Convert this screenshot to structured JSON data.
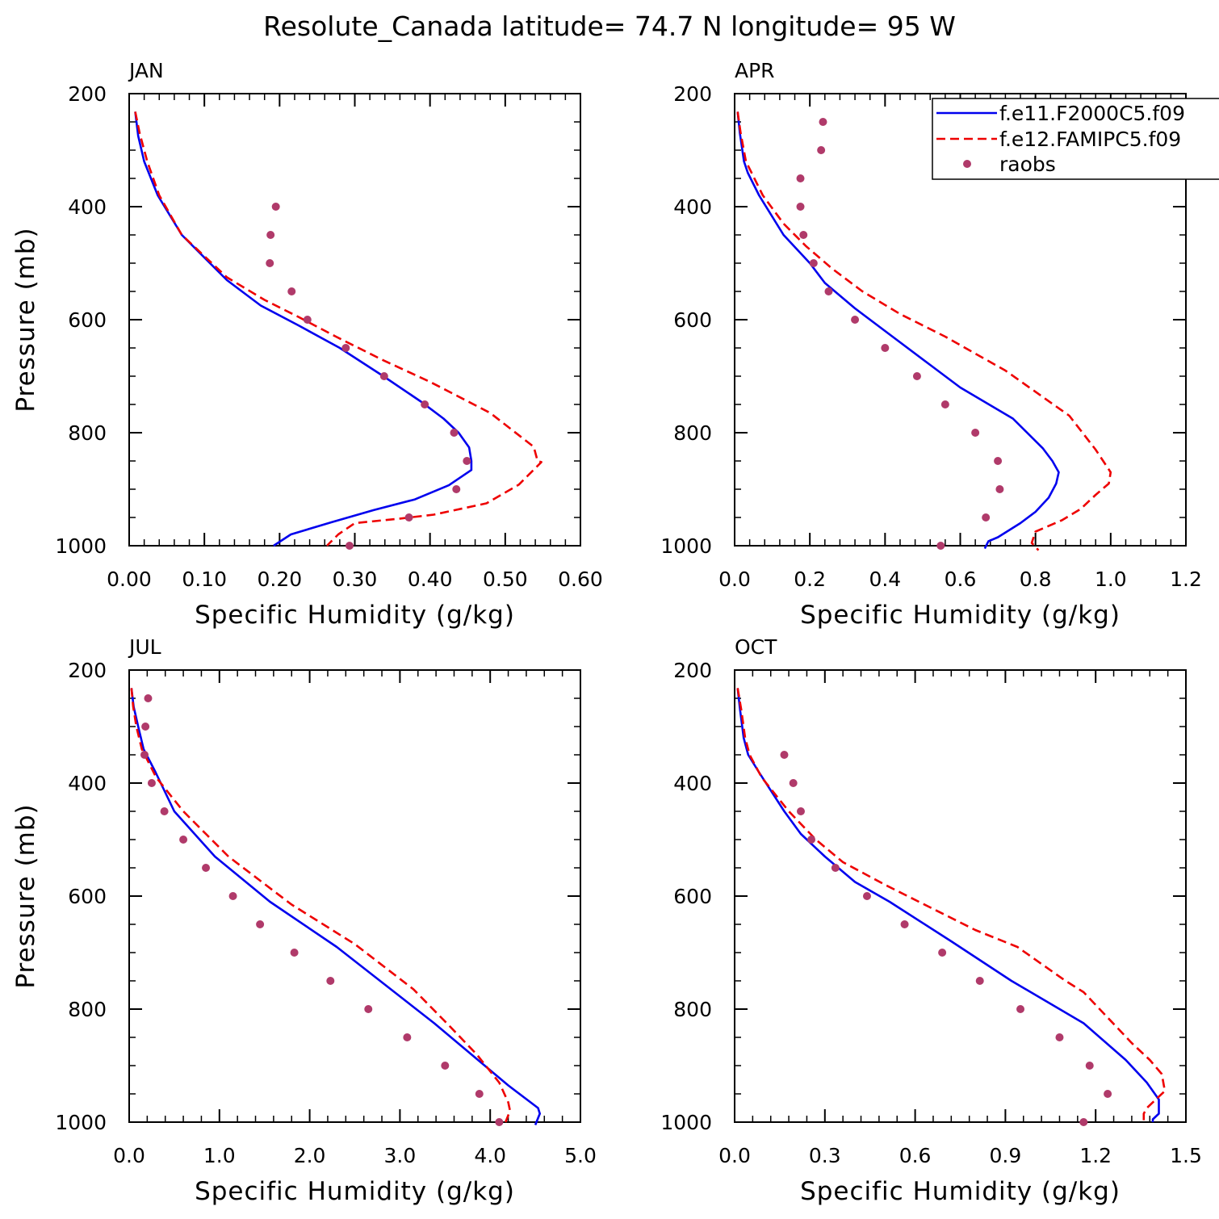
{
  "figure_title": "Resolute_Canada  latitude= 74.7 N longitude= 95 W",
  "colors": {
    "model1": "#0000ee",
    "model2": "#ee0000",
    "obs": "#b03a6a"
  },
  "legend": [
    {
      "label": "f.e11.F2000C5.f09",
      "style": "solid",
      "color": "#0000ee"
    },
    {
      "label": "f.e12.FAMIPC5.f09",
      "style": "dashed",
      "color": "#ee0000"
    },
    {
      "label": "raobs",
      "style": "dots",
      "color": "#b03a6a"
    }
  ],
  "chart_data": [
    {
      "type": "line",
      "title": "JAN",
      "xlabel": "Specific Humidity (g/kg)",
      "ylabel": "Pressure (mb)",
      "xlim": [
        0,
        0.6
      ],
      "ylim": [
        200,
        1000
      ],
      "y_inverted": true,
      "xticks": [
        "0.00",
        "0.10",
        "0.20",
        "0.30",
        "0.40",
        "0.50",
        "0.60"
      ],
      "yticks": [
        "200",
        "400",
        "600",
        "800",
        "1000"
      ],
      "series": [
        {
          "name": "f.e11.F2000C5.f09",
          "style": "solid",
          "points": [
            [
              0.008,
              232
            ],
            [
              0.012,
              275
            ],
            [
              0.02,
              320
            ],
            [
              0.038,
              380
            ],
            [
              0.07,
              450
            ],
            [
              0.13,
              530
            ],
            [
              0.175,
              575
            ],
            [
              0.225,
              610
            ],
            [
              0.28,
              650
            ],
            [
              0.338,
              700
            ],
            [
              0.388,
              745
            ],
            [
              0.418,
              775
            ],
            [
              0.438,
              800
            ],
            [
              0.452,
              826
            ],
            [
              0.455,
              850
            ],
            [
              0.455,
              866
            ],
            [
              0.425,
              893
            ],
            [
              0.38,
              918
            ],
            [
              0.325,
              937
            ],
            [
              0.27,
              958
            ],
            [
              0.215,
              980
            ],
            [
              0.192,
              1000
            ]
          ]
        },
        {
          "name": "f.e12.FAMIPC5.f09",
          "style": "dashed",
          "points": [
            [
              0.008,
              232
            ],
            [
              0.014,
              270
            ],
            [
              0.024,
              320
            ],
            [
              0.04,
              380
            ],
            [
              0.07,
              450
            ],
            [
              0.13,
              525
            ],
            [
              0.18,
              565
            ],
            [
              0.225,
              595
            ],
            [
              0.275,
              630
            ],
            [
              0.335,
              670
            ],
            [
              0.4,
              710
            ],
            [
              0.48,
              765
            ],
            [
              0.538,
              825
            ],
            [
              0.543,
              850
            ],
            [
              0.548,
              852
            ],
            [
              0.518,
              892
            ],
            [
              0.475,
              925
            ],
            [
              0.405,
              945
            ],
            [
              0.36,
              952
            ],
            [
              0.3,
              960
            ],
            [
              0.278,
              980
            ],
            [
              0.263,
              1000
            ]
          ]
        },
        {
          "name": "raobs",
          "style": "dots",
          "points": [
            [
              0.195,
              400
            ],
            [
              0.188,
              450
            ],
            [
              0.187,
              500
            ],
            [
              0.216,
              550
            ],
            [
              0.237,
              600
            ],
            [
              0.288,
              650
            ],
            [
              0.339,
              700
            ],
            [
              0.393,
              750
            ],
            [
              0.432,
              800
            ],
            [
              0.449,
              850
            ],
            [
              0.435,
              900
            ],
            [
              0.372,
              950
            ],
            [
              0.293,
              1000
            ]
          ]
        }
      ]
    },
    {
      "type": "line",
      "title": "APR",
      "xlabel": "Specific Humidity (g/kg)",
      "ylabel": "",
      "xlim": [
        0,
        1.2
      ],
      "ylim": [
        200,
        1000
      ],
      "y_inverted": true,
      "xticks": [
        "0.0",
        "0.2",
        "0.4",
        "0.6",
        "0.8",
        "1.0",
        "1.2"
      ],
      "yticks": [
        "200",
        "400",
        "600",
        "800",
        "1000"
      ],
      "series": [
        {
          "name": "f.e11.F2000C5.f09",
          "style": "solid",
          "points": [
            [
              0.008,
              232
            ],
            [
              0.014,
              270
            ],
            [
              0.025,
              320
            ],
            [
              0.035,
              340
            ],
            [
              0.065,
              380
            ],
            [
              0.13,
              450
            ],
            [
              0.2,
              500
            ],
            [
              0.24,
              535
            ],
            [
              0.32,
              580
            ],
            [
              0.4,
              620
            ],
            [
              0.52,
              680
            ],
            [
              0.6,
              720
            ],
            [
              0.74,
              775
            ],
            [
              0.82,
              828
            ],
            [
              0.845,
              850
            ],
            [
              0.862,
              870
            ],
            [
              0.855,
              890
            ],
            [
              0.835,
              915
            ],
            [
              0.8,
              940
            ],
            [
              0.76,
              960
            ],
            [
              0.7,
              985
            ],
            [
              0.675,
              992
            ],
            [
              0.665,
              1005
            ]
          ]
        },
        {
          "name": "f.e12.FAMIPC5.f09",
          "style": "dashed",
          "points": [
            [
              0.008,
              232
            ],
            [
              0.016,
              270
            ],
            [
              0.03,
              320
            ],
            [
              0.045,
              340
            ],
            [
              0.075,
              380
            ],
            [
              0.13,
              430
            ],
            [
              0.19,
              470
            ],
            [
              0.26,
              510
            ],
            [
              0.34,
              550
            ],
            [
              0.44,
              590
            ],
            [
              0.56,
              630
            ],
            [
              0.72,
              690
            ],
            [
              0.89,
              770
            ],
            [
              0.96,
              830
            ],
            [
              0.98,
              850
            ],
            [
              1.0,
              870
            ],
            [
              0.995,
              890
            ],
            [
              0.96,
              910
            ],
            [
              0.92,
              935
            ],
            [
              0.87,
              955
            ],
            [
              0.8,
              975
            ],
            [
              0.79,
              995
            ],
            [
              0.808,
              1008
            ]
          ]
        },
        {
          "name": "raobs",
          "style": "dots",
          "points": [
            [
              0.235,
              250
            ],
            [
              0.23,
              300
            ],
            [
              0.175,
              350
            ],
            [
              0.175,
              400
            ],
            [
              0.183,
              450
            ],
            [
              0.21,
              500
            ],
            [
              0.25,
              550
            ],
            [
              0.32,
              600
            ],
            [
              0.4,
              650
            ],
            [
              0.485,
              700
            ],
            [
              0.56,
              750
            ],
            [
              0.64,
              800
            ],
            [
              0.7,
              850
            ],
            [
              0.705,
              900
            ],
            [
              0.668,
              950
            ],
            [
              0.548,
              1000
            ]
          ]
        }
      ]
    },
    {
      "type": "line",
      "title": "JUL",
      "xlabel": "Specific Humidity (g/kg)",
      "ylabel": "Pressure (mb)",
      "xlim": [
        0,
        5
      ],
      "ylim": [
        200,
        1000
      ],
      "y_inverted": true,
      "xticks": [
        "0.0",
        "1.0",
        "2.0",
        "3.0",
        "4.0",
        "5.0"
      ],
      "yticks": [
        "200",
        "400",
        "600",
        "800",
        "1000"
      ],
      "series": [
        {
          "name": "f.e11.F2000C5.f09",
          "style": "solid",
          "points": [
            [
              0.025,
              232
            ],
            [
              0.05,
              265
            ],
            [
              0.1,
              300
            ],
            [
              0.16,
              340
            ],
            [
              0.29,
              380
            ],
            [
              0.5,
              450
            ],
            [
              0.95,
              530
            ],
            [
              1.56,
              610
            ],
            [
              2.3,
              690
            ],
            [
              3.38,
              825
            ],
            [
              4.2,
              935
            ],
            [
              4.53,
              975
            ],
            [
              4.55,
              985
            ],
            [
              4.5,
              1005
            ]
          ]
        },
        {
          "name": "f.e12.FAMIPC5.f09",
          "style": "dashed",
          "points": [
            [
              0.025,
              232
            ],
            [
              0.045,
              265
            ],
            [
              0.08,
              300
            ],
            [
              0.14,
              340
            ],
            [
              0.3,
              390
            ],
            [
              0.6,
              450
            ],
            [
              1.1,
              530
            ],
            [
              1.8,
              615
            ],
            [
              2.5,
              685
            ],
            [
              3.15,
              765
            ],
            [
              3.55,
              830
            ],
            [
              3.85,
              880
            ],
            [
              4.1,
              930
            ],
            [
              4.2,
              965
            ],
            [
              4.22,
              980
            ],
            [
              4.17,
              1000
            ]
          ]
        },
        {
          "name": "raobs",
          "style": "dots",
          "points": [
            [
              0.21,
              250
            ],
            [
              0.18,
              300
            ],
            [
              0.17,
              350
            ],
            [
              0.25,
              400
            ],
            [
              0.39,
              450
            ],
            [
              0.6,
              500
            ],
            [
              0.85,
              550
            ],
            [
              1.15,
              600
            ],
            [
              1.45,
              650
            ],
            [
              1.83,
              700
            ],
            [
              2.23,
              750
            ],
            [
              2.65,
              800
            ],
            [
              3.08,
              850
            ],
            [
              3.5,
              900
            ],
            [
              3.88,
              950
            ],
            [
              4.1,
              1000
            ]
          ]
        }
      ]
    },
    {
      "type": "line",
      "title": "OCT",
      "xlabel": "Specific Humidity (g/kg)",
      "ylabel": "",
      "xlim": [
        0,
        1.5
      ],
      "ylim": [
        200,
        1000
      ],
      "y_inverted": true,
      "xticks": [
        "0.0",
        "0.3",
        "0.6",
        "0.9",
        "1.2",
        "1.5"
      ],
      "yticks": [
        "200",
        "400",
        "600",
        "800",
        "1000"
      ],
      "series": [
        {
          "name": "f.e11.F2000C5.f09",
          "style": "solid",
          "points": [
            [
              0.01,
              232
            ],
            [
              0.018,
              270
            ],
            [
              0.03,
              320
            ],
            [
              0.045,
              350
            ],
            [
              0.08,
              380
            ],
            [
              0.165,
              450
            ],
            [
              0.22,
              490
            ],
            [
              0.3,
              530
            ],
            [
              0.4,
              575
            ],
            [
              0.515,
              610
            ],
            [
              0.72,
              680
            ],
            [
              0.92,
              750
            ],
            [
              1.16,
              825
            ],
            [
              1.3,
              890
            ],
            [
              1.37,
              930
            ],
            [
              1.41,
              960
            ],
            [
              1.41,
              985
            ],
            [
              1.39,
              995
            ],
            [
              1.39,
              1000
            ]
          ]
        },
        {
          "name": "f.e12.FAMIPC5.f09",
          "style": "dashed",
          "points": [
            [
              0.01,
              232
            ],
            [
              0.022,
              270
            ],
            [
              0.035,
              320
            ],
            [
              0.05,
              350
            ],
            [
              0.09,
              390
            ],
            [
              0.18,
              450
            ],
            [
              0.27,
              500
            ],
            [
              0.36,
              540
            ],
            [
              0.5,
              580
            ],
            [
              0.65,
              620
            ],
            [
              0.8,
              660
            ],
            [
              0.94,
              690
            ],
            [
              1.1,
              750
            ],
            [
              1.16,
              770
            ],
            [
              1.24,
              815
            ],
            [
              1.32,
              860
            ],
            [
              1.38,
              890
            ],
            [
              1.42,
              915
            ],
            [
              1.43,
              945
            ],
            [
              1.4,
              960
            ],
            [
              1.37,
              975
            ],
            [
              1.36,
              985
            ],
            [
              1.36,
              1000
            ]
          ]
        },
        {
          "name": "raobs",
          "style": "dots",
          "points": [
            [
              0.165,
              350
            ],
            [
              0.195,
              400
            ],
            [
              0.22,
              450
            ],
            [
              0.255,
              500
            ],
            [
              0.335,
              550
            ],
            [
              0.44,
              600
            ],
            [
              0.565,
              650
            ],
            [
              0.69,
              700
            ],
            [
              0.815,
              750
            ],
            [
              0.95,
              800
            ],
            [
              1.08,
              850
            ],
            [
              1.18,
              900
            ],
            [
              1.24,
              950
            ],
            [
              1.16,
              1000
            ]
          ]
        }
      ]
    }
  ]
}
